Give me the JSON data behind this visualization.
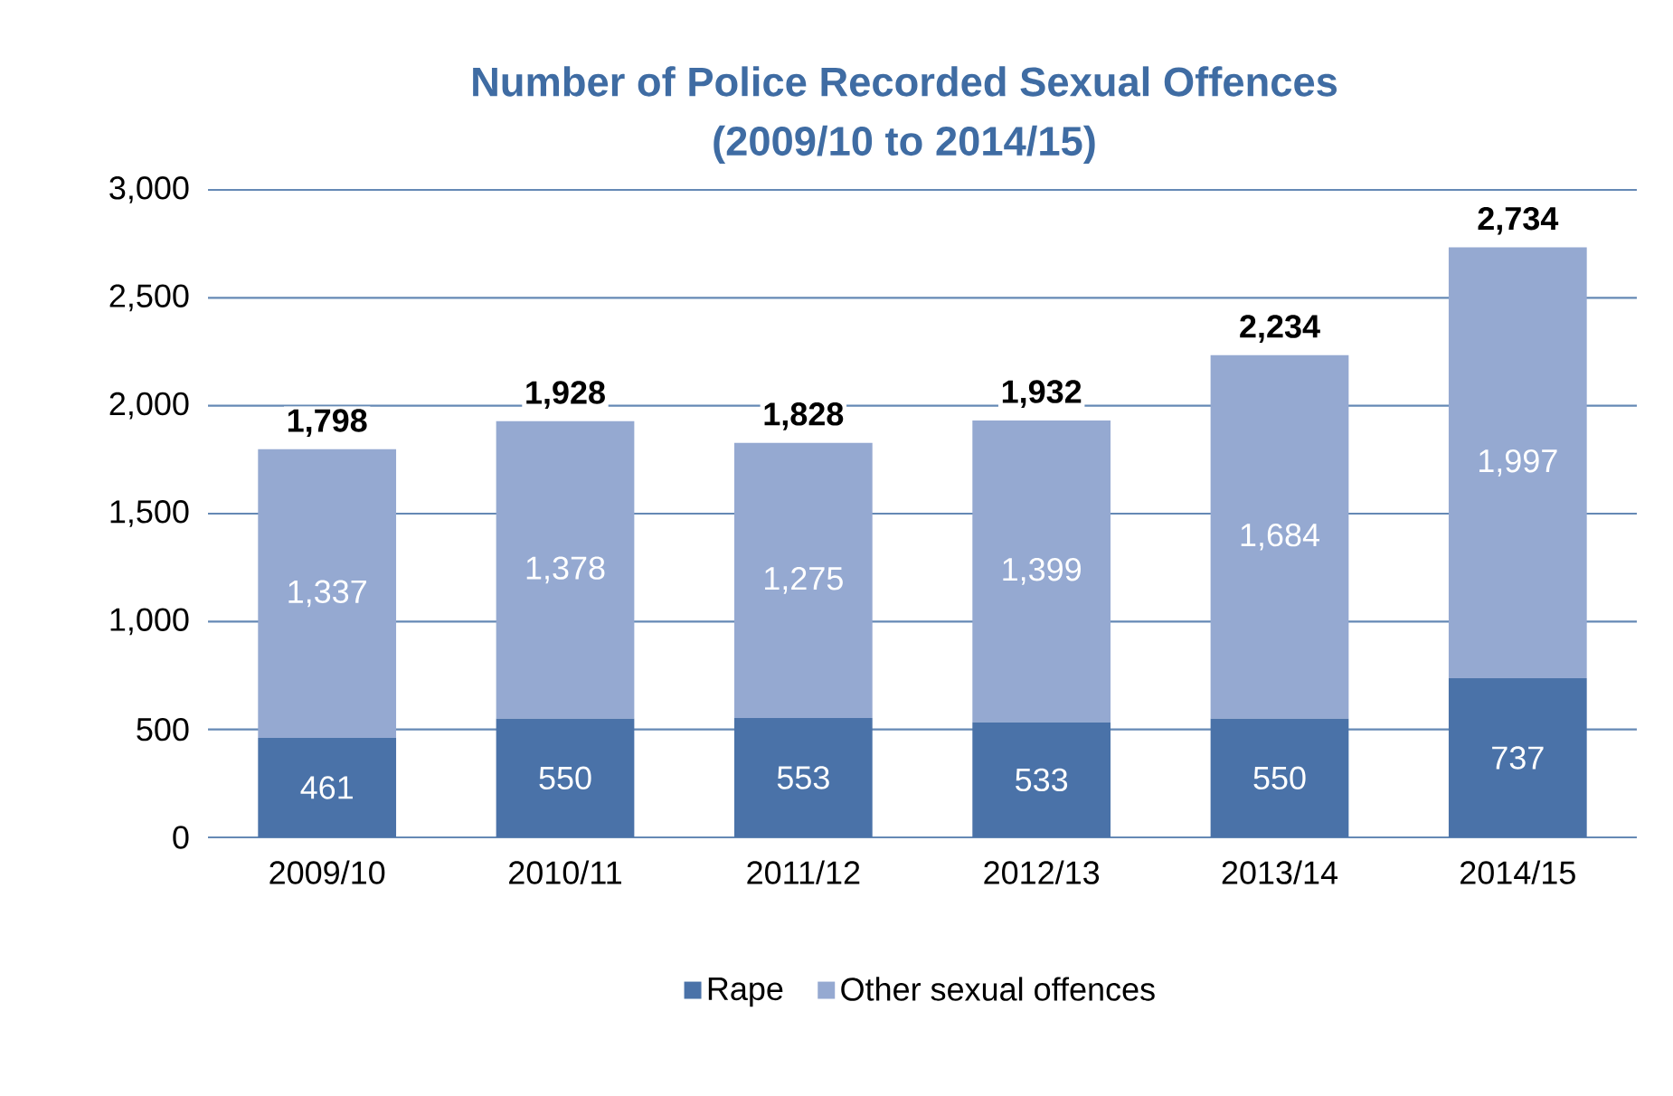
{
  "chart_data": {
    "type": "bar",
    "title": "Number of Police Recorded Sexual Offences",
    "subtitle": "(2009/10 to 2014/15)",
    "categories": [
      "2009/10",
      "2010/11",
      "2011/12",
      "2012/13",
      "2013/14",
      "2014/15"
    ],
    "stacked": true,
    "series": [
      {
        "name": "Rape",
        "color": "#4a72a8",
        "values": [
          461,
          550,
          553,
          533,
          550,
          737
        ],
        "value_labels": [
          "461",
          "550",
          "553",
          "533",
          "550",
          "737"
        ]
      },
      {
        "name": "Other sexual offences",
        "color": "#95a9d1",
        "values": [
          1337,
          1378,
          1275,
          1399,
          1684,
          1997
        ],
        "value_labels": [
          "1,337",
          "1,378",
          "1,275",
          "1,399",
          "1,684",
          "1,997"
        ]
      }
    ],
    "totals": [
      "1,798",
      "1,928",
      "1,828",
      "1,932",
      "2,234",
      "2,734"
    ],
    "ylim": [
      0,
      3000
    ],
    "yticks": [
      0,
      {
        "value": 500,
        "label": "500"
      },
      {
        "value": 1000,
        "label": "1,000"
      },
      {
        "value": 1500,
        "label": "1,500"
      },
      {
        "value": 2000,
        "label": "2,000"
      },
      {
        "value": 2500,
        "label": "2,500"
      },
      {
        "value": 3000,
        "label": "3,000"
      }
    ],
    "grid": "y",
    "legend": "bottom"
  }
}
